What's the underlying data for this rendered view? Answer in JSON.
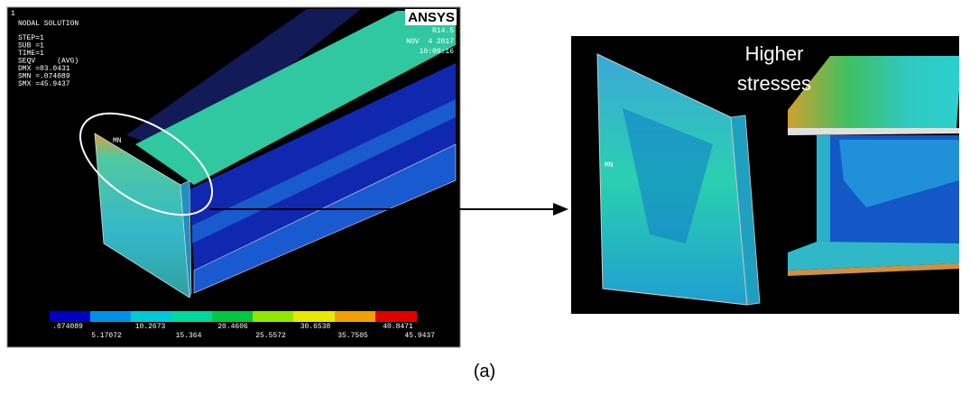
{
  "left_panel": {
    "window_number": "1",
    "title": "NODAL SOLUTION",
    "info": [
      "STEP=1",
      "SUB =1",
      "TIME=1",
      "SEQV     (AVG)",
      "DMX =83.0431",
      "SMN =.074089",
      "SMX =45.9437"
    ],
    "logo": "ANSYS",
    "version": "R14.5",
    "date": "NOV  4 2017",
    "time": "19:00:16",
    "node_label": "MN",
    "legend": {
      "upper_labels": [
        ".074089",
        "10.2673",
        "20.4606",
        "30.6538",
        "40.8471"
      ],
      "lower_labels": [
        "5.17072",
        "15.364",
        "25.5572",
        "35.7505",
        "45.9437"
      ]
    }
  },
  "right_panel": {
    "annotation": [
      "Higher",
      "stresses"
    ],
    "node_label": "MN"
  },
  "caption": "(a)"
}
